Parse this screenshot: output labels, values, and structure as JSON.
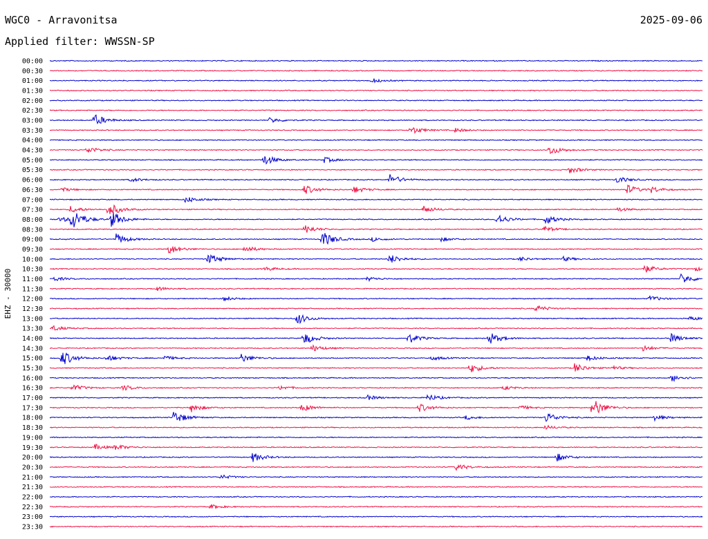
{
  "header": {
    "station": "WGC0 - Arravonitsa",
    "date": "2025-09-06",
    "filter": "Applied filter: WWSSN-SP"
  },
  "chart_data": {
    "type": "line",
    "ylabel": "EHZ - 30000",
    "row_labels": [
      "00:00",
      "00:30",
      "01:00",
      "01:30",
      "02:00",
      "02:30",
      "03:00",
      "03:30",
      "04:00",
      "04:30",
      "05:00",
      "05:30",
      "06:00",
      "06:30",
      "07:00",
      "07:30",
      "08:00",
      "08:30",
      "09:00",
      "09:30",
      "10:00",
      "10:30",
      "11:00",
      "11:30",
      "12:00",
      "12:30",
      "13:00",
      "13:30",
      "14:00",
      "14:30",
      "15:00",
      "15:30",
      "16:00",
      "16:30",
      "17:00",
      "17:30",
      "18:00",
      "18:30",
      "19:00",
      "19:30",
      "20:00",
      "20:30",
      "21:00",
      "21:30",
      "22:00",
      "22:30",
      "23:00",
      "23:30"
    ],
    "colors": [
      "#0000cc",
      "#ee1144"
    ],
    "events": [
      [
        2,
        538,
        3
      ],
      [
        6,
        136,
        9
      ],
      [
        6,
        390,
        4
      ],
      [
        7,
        594,
        6
      ],
      [
        7,
        658,
        3
      ],
      [
        9,
        126,
        5
      ],
      [
        9,
        795,
        7
      ],
      [
        10,
        381,
        8
      ],
      [
        10,
        469,
        4
      ],
      [
        11,
        823,
        5
      ],
      [
        12,
        189,
        3
      ],
      [
        12,
        563,
        8
      ],
      [
        12,
        892,
        5
      ],
      [
        13,
        88,
        3
      ],
      [
        13,
        440,
        7
      ],
      [
        13,
        512,
        5
      ],
      [
        13,
        907,
        7
      ],
      [
        13,
        942,
        4
      ],
      [
        14,
        268,
        5
      ],
      [
        15,
        157,
        10
      ],
      [
        15,
        102,
        5
      ],
      [
        15,
        613,
        5
      ],
      [
        15,
        893,
        3
      ],
      [
        16,
        103,
        16
      ],
      [
        16,
        161,
        12
      ],
      [
        16,
        86,
        4
      ],
      [
        16,
        718,
        8
      ],
      [
        16,
        789,
        7
      ],
      [
        17,
        441,
        6
      ],
      [
        17,
        787,
        4
      ],
      [
        18,
        466,
        12
      ],
      [
        18,
        168,
        8
      ],
      [
        18,
        538,
        3
      ],
      [
        18,
        638,
        3
      ],
      [
        19,
        244,
        7
      ],
      [
        19,
        353,
        5
      ],
      [
        20,
        301,
        8
      ],
      [
        20,
        563,
        7
      ],
      [
        20,
        752,
        3
      ],
      [
        20,
        815,
        3
      ],
      [
        21,
        931,
        6
      ],
      [
        21,
        1005,
        3
      ],
      [
        21,
        383,
        3
      ],
      [
        22,
        78,
        3
      ],
      [
        22,
        531,
        3
      ],
      [
        22,
        985,
        8
      ],
      [
        23,
        226,
        3
      ],
      [
        24,
        324,
        3
      ],
      [
        24,
        940,
        4
      ],
      [
        25,
        775,
        5
      ],
      [
        26,
        430,
        8
      ],
      [
        26,
        998,
        3
      ],
      [
        27,
        76,
        4
      ],
      [
        28,
        439,
        9
      ],
      [
        28,
        591,
        7
      ],
      [
        28,
        707,
        9
      ],
      [
        28,
        969,
        7
      ],
      [
        29,
        451,
        5
      ],
      [
        29,
        930,
        4
      ],
      [
        30,
        89,
        12
      ],
      [
        30,
        154,
        5
      ],
      [
        30,
        238,
        3
      ],
      [
        30,
        349,
        6
      ],
      [
        30,
        625,
        3
      ],
      [
        30,
        849,
        4
      ],
      [
        31,
        680,
        7
      ],
      [
        31,
        831,
        7
      ],
      [
        31,
        884,
        3
      ],
      [
        32,
        972,
        5
      ],
      [
        33,
        104,
        5
      ],
      [
        33,
        178,
        4
      ],
      [
        33,
        405,
        3
      ],
      [
        33,
        728,
        3
      ],
      [
        34,
        529,
        4
      ],
      [
        34,
        618,
        5
      ],
      [
        35,
        277,
        6
      ],
      [
        35,
        436,
        6
      ],
      [
        35,
        606,
        6
      ],
      [
        35,
        752,
        3
      ],
      [
        35,
        857,
        14
      ],
      [
        36,
        251,
        10
      ],
      [
        36,
        789,
        8
      ],
      [
        36,
        947,
        4
      ],
      [
        36,
        673,
        3
      ],
      [
        37,
        788,
        3
      ],
      [
        39,
        137,
        4
      ],
      [
        39,
        167,
        4
      ],
      [
        40,
        365,
        7
      ],
      [
        40,
        805,
        6
      ],
      [
        41,
        660,
        5
      ],
      [
        42,
        320,
        3
      ],
      [
        45,
        305,
        3
      ]
    ]
  }
}
